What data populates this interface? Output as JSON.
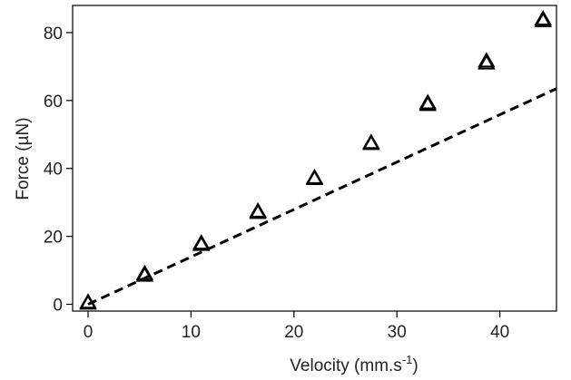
{
  "chart_data": {
    "type": "scatter",
    "xlabel": "Velocity (mm.s",
    "xlabel_sup": "-1",
    "xlabel_end": ")",
    "ylabel": "Force (µN)",
    "xlim": [
      -1.5,
      45.5
    ],
    "ylim": [
      -2,
      88
    ],
    "xticks": [
      0,
      10,
      20,
      30,
      40
    ],
    "yticks": [
      0,
      20,
      40,
      60,
      80
    ],
    "grid": false,
    "series": [
      {
        "marker": "triangle-open",
        "color": "#000000",
        "x": [
          0,
          5.5,
          11,
          16.5,
          22,
          27.5,
          33,
          38.7,
          44.2
        ],
        "y": [
          0.3,
          8.5,
          17.6,
          27,
          37,
          47.3,
          58.8,
          71,
          83.5
        ]
      },
      {
        "marker": "triangle-open",
        "color": "#000000",
        "x": [
          0,
          5.5,
          11,
          16.5,
          22,
          27.5,
          33,
          38.7,
          44.2
        ],
        "y": [
          0.6,
          9.0,
          18.0,
          27.4,
          37.3,
          47.6,
          59.3,
          71.6,
          84.0
        ]
      }
    ],
    "fit_line": {
      "style": "dashed",
      "color": "#000000",
      "x": [
        0,
        45.5
      ],
      "y": [
        0,
        63.5
      ]
    }
  }
}
